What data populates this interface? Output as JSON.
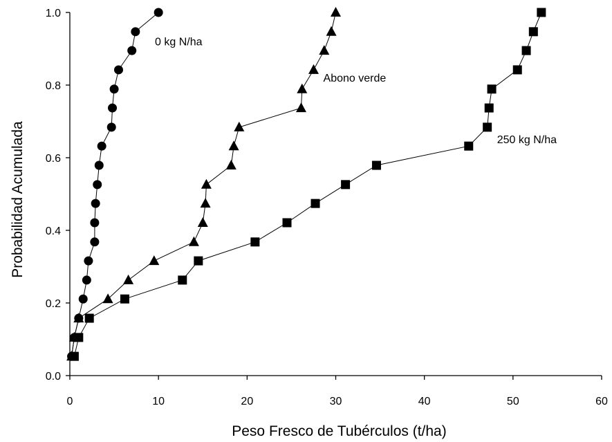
{
  "chart_data": {
    "type": "line",
    "xlabel": "Peso Fresco de Tubérculos (t/ha)",
    "ylabel": "Probabilidad Acumulada",
    "xlim": [
      0,
      60
    ],
    "ylim": [
      0,
      1
    ],
    "xticks": [
      0,
      10,
      20,
      30,
      40,
      50,
      60
    ],
    "yticks": [
      "0.0",
      "0.2",
      "0.4",
      "0.6",
      "0.8",
      "1.0"
    ],
    "grid": false,
    "legend": "none",
    "annotations": [
      {
        "text": "0 kg N/ha",
        "x": 9.6,
        "y": 0.91
      },
      {
        "text": "Abono verde",
        "x": 28.6,
        "y": 0.81
      },
      {
        "text": "250 kg N/ha",
        "x": 48.2,
        "y": 0.64
      }
    ],
    "series": [
      {
        "marker": "circle",
        "color": "#000000",
        "x": [
          0.2,
          0.5,
          1.0,
          1.5,
          1.9,
          2.1,
          2.8,
          2.8,
          2.9,
          3.1,
          3.3,
          3.6,
          4.7,
          4.8,
          5.0,
          5.5,
          7.0,
          7.4,
          10.0
        ],
        "y": [
          0.053,
          0.105,
          0.158,
          0.211,
          0.263,
          0.316,
          0.368,
          0.421,
          0.474,
          0.526,
          0.579,
          0.632,
          0.684,
          0.737,
          0.789,
          0.842,
          0.895,
          0.947,
          1.0
        ]
      },
      {
        "marker": "triangle",
        "color": "#000000",
        "x": [
          0.2,
          0.5,
          1.0,
          4.3,
          6.6,
          9.5,
          14.0,
          15.0,
          15.3,
          15.4,
          18.2,
          18.5,
          19.1,
          26.1,
          26.2,
          27.5,
          28.7,
          29.5,
          30.0
        ],
        "y": [
          0.053,
          0.105,
          0.158,
          0.211,
          0.263,
          0.316,
          0.368,
          0.421,
          0.474,
          0.526,
          0.579,
          0.632,
          0.684,
          0.737,
          0.789,
          0.842,
          0.895,
          0.947,
          1.0
        ]
      },
      {
        "marker": "square",
        "color": "#000000",
        "x": [
          0.5,
          1.0,
          2.2,
          6.2,
          12.7,
          14.5,
          20.9,
          24.5,
          27.7,
          31.1,
          34.6,
          45.0,
          47.1,
          47.3,
          47.6,
          50.5,
          51.5,
          52.3,
          53.2
        ],
        "y": [
          0.053,
          0.105,
          0.158,
          0.211,
          0.263,
          0.316,
          0.368,
          0.421,
          0.474,
          0.526,
          0.579,
          0.632,
          0.684,
          0.737,
          0.789,
          0.842,
          0.895,
          0.947,
          1.0
        ]
      }
    ]
  }
}
